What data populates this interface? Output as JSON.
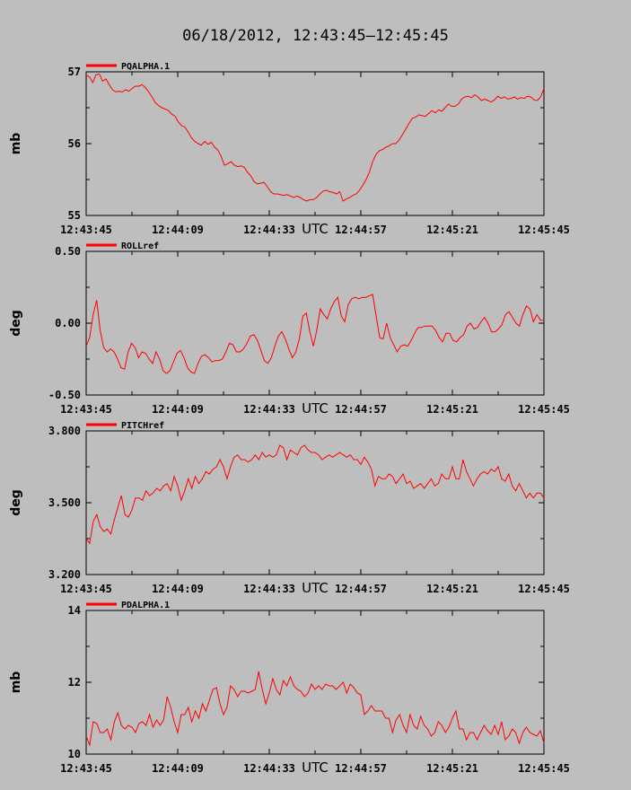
{
  "title": "06/18/2012, 12:43:45–12:45:45",
  "colors": {
    "background": "#bebebe",
    "series": "#ff0000",
    "axis": "#000000"
  },
  "chart_data": [
    {
      "type": "line",
      "legend": "PQALPHA.1",
      "ylabel": "mb",
      "xlabel": "UTC",
      "ylim": [
        55,
        57
      ],
      "yticks": [
        "55",
        "56",
        "57"
      ],
      "xticks": [
        "12:43:45",
        "12:44:09",
        "12:44:33",
        "12:44:57",
        "12:45:21",
        "12:45:45"
      ],
      "xlim": [
        0,
        120
      ],
      "series": [
        {
          "values": [
            56.95,
            56.93,
            56.85,
            56.96,
            56.97,
            56.87,
            56.9,
            56.82,
            56.75,
            56.72,
            56.73,
            56.72,
            56.75,
            56.73,
            56.77,
            56.8,
            56.8,
            56.82,
            56.78,
            56.72,
            56.65,
            56.57,
            56.53,
            56.5,
            56.48,
            56.46,
            56.41,
            56.38,
            56.3,
            56.25,
            56.23,
            56.16,
            56.08,
            56.03,
            56.0,
            55.98,
            56.03,
            55.99,
            56.02,
            55.95,
            55.91,
            55.82,
            55.7,
            55.72,
            55.75,
            55.7,
            55.68,
            55.69,
            55.67,
            55.6,
            55.55,
            55.47,
            55.44,
            55.45,
            55.46,
            55.4,
            55.33,
            55.3,
            55.3,
            55.29,
            55.28,
            55.29,
            55.27,
            55.25,
            55.27,
            55.25,
            55.22,
            55.2,
            55.22,
            55.22,
            55.25,
            55.3,
            55.34,
            55.35,
            55.33,
            55.32,
            55.3,
            55.33,
            55.2,
            55.23,
            55.25,
            55.28,
            55.3,
            55.35,
            55.42,
            55.5,
            55.6,
            55.75,
            55.85,
            55.9,
            55.92,
            55.95,
            55.97,
            56.0,
            56.0,
            56.05,
            56.12,
            56.2,
            56.28,
            56.35,
            56.37,
            56.4,
            56.39,
            56.38,
            56.42,
            56.46,
            56.43,
            56.47,
            56.45,
            56.5,
            56.55,
            56.52,
            56.52,
            56.55,
            56.62,
            56.65,
            56.66,
            56.64,
            56.68,
            56.65,
            56.6,
            56.62,
            56.6,
            56.58,
            56.61,
            56.66,
            56.63,
            56.65,
            56.62,
            56.63,
            56.65,
            56.62,
            56.64,
            56.63,
            56.66,
            56.65,
            56.61,
            56.6,
            56.65,
            56.77
          ]
        }
      ]
    },
    {
      "type": "line",
      "legend": "ROLLref",
      "ylabel": "deg",
      "xlabel": "UTC",
      "ylim": [
        -0.5,
        0.5
      ],
      "yticks": [
        "-0.50",
        "0.00",
        "0.50"
      ],
      "xticks": [
        "12:43:45",
        "12:44:09",
        "12:44:33",
        "12:44:57",
        "12:45:21",
        "12:45:45"
      ],
      "xlim": [
        0,
        120
      ],
      "series": [
        {
          "values": [
            -0.16,
            -0.1,
            0.06,
            0.16,
            -0.05,
            -0.17,
            -0.2,
            -0.18,
            -0.2,
            -0.25,
            -0.31,
            -0.32,
            -0.2,
            -0.14,
            -0.17,
            -0.24,
            -0.2,
            -0.21,
            -0.25,
            -0.28,
            -0.2,
            -0.25,
            -0.33,
            -0.35,
            -0.33,
            -0.27,
            -0.21,
            -0.19,
            -0.24,
            -0.31,
            -0.34,
            -0.35,
            -0.28,
            -0.23,
            -0.22,
            -0.24,
            -0.27,
            -0.26,
            -0.26,
            -0.25,
            -0.2,
            -0.14,
            -0.15,
            -0.2,
            -0.2,
            -0.18,
            -0.14,
            -0.09,
            -0.08,
            -0.12,
            -0.19,
            -0.26,
            -0.28,
            -0.24,
            -0.16,
            -0.09,
            -0.06,
            -0.11,
            -0.18,
            -0.24,
            -0.2,
            -0.11,
            0.05,
            0.07,
            -0.06,
            -0.16,
            -0.05,
            0.1,
            0.06,
            0.03,
            0.1,
            0.15,
            0.18,
            0.05,
            0.01,
            0.13,
            0.17,
            0.18,
            0.17,
            0.18,
            0.18,
            0.19,
            0.2,
            0.05,
            -0.1,
            -0.11,
            0.0,
            -0.1,
            -0.15,
            -0.2,
            -0.16,
            -0.15,
            -0.16,
            -0.12,
            -0.07,
            -0.03,
            -0.03,
            -0.02,
            -0.02,
            -0.02,
            -0.05,
            -0.1,
            -0.13,
            -0.07,
            -0.07,
            -0.12,
            -0.13,
            -0.1,
            -0.08,
            -0.02,
            0.0,
            -0.04,
            -0.03,
            0.01,
            0.04,
            0.0,
            -0.06,
            -0.06,
            -0.04,
            -0.01,
            0.06,
            0.08,
            0.04,
            0.0,
            -0.02,
            0.06,
            0.12,
            0.1,
            0.01,
            0.06,
            0.02,
            0.02
          ]
        }
      ]
    },
    {
      "type": "line",
      "legend": "PITCHref",
      "ylabel": "deg",
      "xlabel": "UTC",
      "ylim": [
        3.2,
        3.8
      ],
      "yticks": [
        "3.200",
        "3.500",
        "3.800"
      ],
      "xticks": [
        "12:43:45",
        "12:44:09",
        "12:44:33",
        "12:44:57",
        "12:45:21",
        "12:45:45"
      ],
      "xlim": [
        0,
        120
      ],
      "series": [
        {
          "values": [
            3.35,
            3.33,
            3.42,
            3.45,
            3.4,
            3.38,
            3.39,
            3.37,
            3.43,
            3.48,
            3.53,
            3.45,
            3.44,
            3.47,
            3.52,
            3.52,
            3.51,
            3.55,
            3.53,
            3.54,
            3.56,
            3.55,
            3.57,
            3.58,
            3.55,
            3.61,
            3.57,
            3.51,
            3.55,
            3.6,
            3.56,
            3.61,
            3.58,
            3.6,
            3.63,
            3.62,
            3.64,
            3.65,
            3.68,
            3.65,
            3.6,
            3.65,
            3.69,
            3.7,
            3.68,
            3.68,
            3.67,
            3.68,
            3.7,
            3.68,
            3.71,
            3.69,
            3.7,
            3.69,
            3.7,
            3.74,
            3.73,
            3.68,
            3.72,
            3.71,
            3.7,
            3.73,
            3.74,
            3.72,
            3.71,
            3.71,
            3.7,
            3.68,
            3.69,
            3.7,
            3.69,
            3.7,
            3.71,
            3.7,
            3.69,
            3.7,
            3.68,
            3.68,
            3.66,
            3.69,
            3.67,
            3.64,
            3.57,
            3.61,
            3.6,
            3.6,
            3.62,
            3.61,
            3.58,
            3.6,
            3.62,
            3.58,
            3.59,
            3.56,
            3.57,
            3.58,
            3.56,
            3.58,
            3.6,
            3.57,
            3.58,
            3.62,
            3.6,
            3.6,
            3.65,
            3.6,
            3.6,
            3.68,
            3.63,
            3.6,
            3.57,
            3.6,
            3.62,
            3.63,
            3.62,
            3.64,
            3.63,
            3.65,
            3.6,
            3.59,
            3.62,
            3.57,
            3.55,
            3.58,
            3.55,
            3.52,
            3.54,
            3.52,
            3.54,
            3.54,
            3.52
          ]
        }
      ]
    },
    {
      "type": "line",
      "legend": "PDALPHA.1",
      "ylabel": "mb",
      "xlabel": "UTC",
      "ylim": [
        10,
        14
      ],
      "yticks": [
        "10",
        "12",
        "14"
      ],
      "xticks": [
        "12:43:45",
        "12:44:09",
        "12:44:33",
        "12:44:57",
        "12:45:21",
        "12:45:45"
      ],
      "xlim": [
        0,
        120
      ],
      "series": [
        {
          "values": [
            10.5,
            10.25,
            10.9,
            10.85,
            10.6,
            10.6,
            10.7,
            10.4,
            10.9,
            11.15,
            10.8,
            10.7,
            10.8,
            10.75,
            10.6,
            10.85,
            10.9,
            10.8,
            11.1,
            10.75,
            10.95,
            10.8,
            10.95,
            11.6,
            11.3,
            10.9,
            10.6,
            11.1,
            11.1,
            11.3,
            10.9,
            11.2,
            11.0,
            11.4,
            11.2,
            11.5,
            11.8,
            11.85,
            11.4,
            11.1,
            11.3,
            11.9,
            11.8,
            11.6,
            11.75,
            11.75,
            11.7,
            11.75,
            11.8,
            12.3,
            11.8,
            11.4,
            11.7,
            12.1,
            11.8,
            11.65,
            12.05,
            11.9,
            12.15,
            11.9,
            11.8,
            11.75,
            11.6,
            11.7,
            11.95,
            11.8,
            11.9,
            11.8,
            11.95,
            11.9,
            11.9,
            11.8,
            11.9,
            12.0,
            11.7,
            11.95,
            11.85,
            11.7,
            11.65,
            11.1,
            11.2,
            11.35,
            11.2,
            11.2,
            11.2,
            11.0,
            11.0,
            10.6,
            10.95,
            11.1,
            10.8,
            10.6,
            11.1,
            10.8,
            10.7,
            11.05,
            10.8,
            10.7,
            10.5,
            10.6,
            10.9,
            10.8,
            10.6,
            10.75,
            11.0,
            11.2,
            10.7,
            10.7,
            10.4,
            10.6,
            10.6,
            10.4,
            10.6,
            10.8,
            10.65,
            10.55,
            10.8,
            10.55,
            10.9,
            10.4,
            10.5,
            10.7,
            10.6,
            10.3,
            10.6,
            10.75,
            10.6,
            10.55,
            10.5,
            10.65,
            10.3
          ]
        }
      ]
    }
  ]
}
